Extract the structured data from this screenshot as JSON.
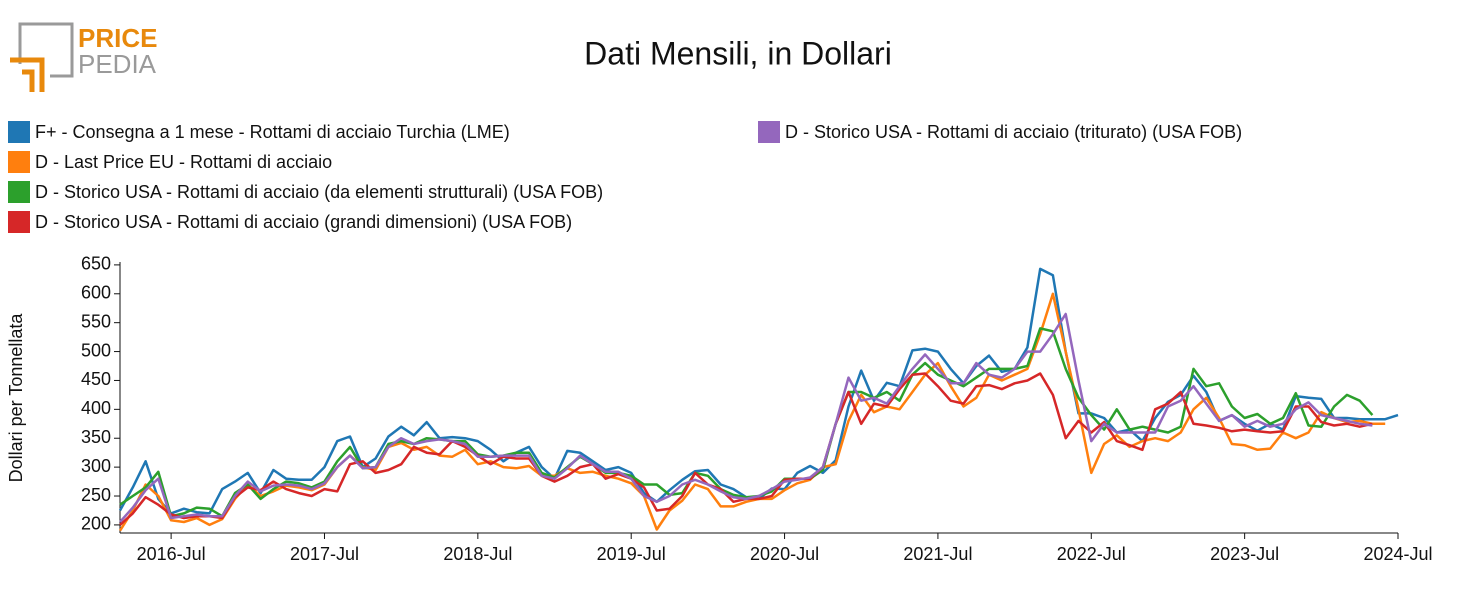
{
  "logo": {
    "line1": "PRICE",
    "line2": "PEDIA"
  },
  "chart_data": {
    "type": "line",
    "title": "Dati Mensili, in Dollari",
    "y_label": "Dollari per Tonnellata",
    "x": [
      "2016-03",
      "2016-04",
      "2016-05",
      "2016-06",
      "2016-07",
      "2016-08",
      "2016-09",
      "2016-10",
      "2016-11",
      "2016-12",
      "2017-01",
      "2017-02",
      "2017-03",
      "2017-04",
      "2017-05",
      "2017-06",
      "2017-07",
      "2017-08",
      "2017-09",
      "2017-10",
      "2017-11",
      "2017-12",
      "2018-01",
      "2018-02",
      "2018-03",
      "2018-04",
      "2018-05",
      "2018-06",
      "2018-07",
      "2018-08",
      "2018-09",
      "2018-10",
      "2018-11",
      "2018-12",
      "2019-01",
      "2019-02",
      "2019-03",
      "2019-04",
      "2019-05",
      "2019-06",
      "2019-07",
      "2019-08",
      "2019-09",
      "2019-10",
      "2019-11",
      "2019-12",
      "2020-01",
      "2020-02",
      "2020-03",
      "2020-04",
      "2020-05",
      "2020-06",
      "2020-07",
      "2020-08",
      "2020-09",
      "2020-10",
      "2020-11",
      "2020-12",
      "2021-01",
      "2021-02",
      "2021-03",
      "2021-04",
      "2021-05",
      "2021-06",
      "2021-07",
      "2021-08",
      "2021-09",
      "2021-10",
      "2021-11",
      "2021-12",
      "2022-01",
      "2022-02",
      "2022-03",
      "2022-04",
      "2022-05",
      "2022-06",
      "2022-07",
      "2022-08",
      "2022-09",
      "2022-10",
      "2022-11",
      "2022-12",
      "2023-01",
      "2023-02",
      "2023-03",
      "2023-04",
      "2023-05",
      "2023-06",
      "2023-07",
      "2023-08",
      "2023-09",
      "2023-10",
      "2023-11",
      "2023-12",
      "2024-01",
      "2024-02",
      "2024-03",
      "2024-04",
      "2024-05",
      "2024-06",
      "2024-07"
    ],
    "xlim": [
      "2016-03",
      "2024-07"
    ],
    "xticks": [
      {
        "value": "2016-07",
        "label": "2016-Jul"
      },
      {
        "value": "2017-07",
        "label": "2017-Jul"
      },
      {
        "value": "2018-07",
        "label": "2018-Jul"
      },
      {
        "value": "2019-07",
        "label": "2019-Jul"
      },
      {
        "value": "2020-07",
        "label": "2020-Jul"
      },
      {
        "value": "2021-07",
        "label": "2021-Jul"
      },
      {
        "value": "2022-07",
        "label": "2022-Jul"
      },
      {
        "value": "2023-07",
        "label": "2023-Jul"
      },
      {
        "value": "2024-07",
        "label": "2024-Jul"
      }
    ],
    "ylim": [
      186,
      655
    ],
    "yticks": [
      200,
      250,
      300,
      350,
      400,
      450,
      500,
      550,
      600,
      650
    ],
    "series": [
      {
        "name": "F+ - Consegna a 1 mese - Rottami di acciaio Turchia (LME)",
        "color": "#1f77b4",
        "values": [
          225,
          265,
          310,
          245,
          220,
          228,
          222,
          220,
          262,
          275,
          290,
          255,
          295,
          280,
          278,
          278,
          300,
          345,
          353,
          300,
          315,
          353,
          370,
          355,
          378,
          350,
          352,
          350,
          345,
          330,
          310,
          325,
          335,
          300,
          280,
          328,
          325,
          310,
          295,
          300,
          290,
          255,
          240,
          260,
          278,
          293,
          295,
          270,
          262,
          248,
          245,
          263,
          262,
          290,
          302,
          290,
          312,
          405,
          467,
          415,
          446,
          440,
          502,
          505,
          500,
          470,
          445,
          475,
          493,
          465,
          470,
          507,
          643,
          632,
          500,
          393,
          393,
          385,
          360,
          365,
          345,
          385,
          413,
          425,
          458,
          430,
          380,
          390,
          375,
          363,
          375,
          365,
          423,
          420,
          418,
          385,
          385,
          383,
          383,
          383,
          390
        ]
      },
      {
        "name": "D - Last Price EU - Rottami di acciaio",
        "color": "#ff7f0e",
        "values": [
          190,
          225,
          270,
          250,
          208,
          205,
          212,
          200,
          210,
          245,
          270,
          250,
          258,
          268,
          265,
          260,
          270,
          300,
          320,
          300,
          295,
          335,
          342,
          330,
          335,
          320,
          318,
          330,
          305,
          310,
          300,
          298,
          302,
          285,
          285,
          298,
          290,
          292,
          285,
          280,
          272,
          250,
          192,
          225,
          242,
          270,
          262,
          232,
          232,
          240,
          245,
          245,
          260,
          272,
          278,
          300,
          305,
          380,
          425,
          395,
          405,
          400,
          430,
          460,
          480,
          440,
          405,
          420,
          460,
          450,
          460,
          470,
          530,
          600,
          500,
          400,
          290,
          340,
          355,
          335,
          345,
          350,
          345,
          360,
          400,
          420,
          385,
          340,
          338,
          330,
          332,
          360,
          350,
          360,
          395,
          385,
          378,
          380,
          375,
          375,
          null
        ]
      },
      {
        "name": "D - Storico USA - Rottami di acciaio (da elementi strutturali) (USA FOB)",
        "color": "#2ca02c",
        "values": [
          235,
          250,
          265,
          292,
          215,
          220,
          230,
          228,
          215,
          255,
          270,
          245,
          262,
          275,
          272,
          265,
          275,
          310,
          335,
          298,
          300,
          340,
          345,
          340,
          350,
          348,
          345,
          345,
          322,
          318,
          320,
          325,
          325,
          290,
          282,
          300,
          318,
          305,
          290,
          290,
          285,
          270,
          270,
          252,
          255,
          290,
          285,
          262,
          252,
          248,
          250,
          258,
          280,
          280,
          280,
          295,
          375,
          430,
          430,
          420,
          430,
          415,
          460,
          480,
          460,
          450,
          440,
          455,
          470,
          470,
          470,
          475,
          540,
          535,
          470,
          420,
          390,
          365,
          400,
          365,
          370,
          365,
          360,
          370,
          470,
          440,
          445,
          405,
          385,
          392,
          375,
          385,
          428,
          372,
          370,
          405,
          425,
          415,
          390,
          null,
          null
        ]
      },
      {
        "name": "D - Storico USA - Rottami di acciaio (grandi dimensioni) (USA FOB)",
        "color": "#d62728",
        "values": [
          200,
          220,
          248,
          235,
          218,
          212,
          215,
          215,
          212,
          248,
          265,
          260,
          275,
          262,
          255,
          250,
          262,
          258,
          305,
          310,
          290,
          295,
          305,
          335,
          325,
          322,
          345,
          335,
          320,
          305,
          318,
          315,
          315,
          285,
          275,
          285,
          300,
          305,
          280,
          288,
          280,
          265,
          225,
          228,
          250,
          290,
          270,
          262,
          240,
          245,
          245,
          250,
          278,
          280,
          280,
          300,
          375,
          430,
          375,
          410,
          405,
          435,
          460,
          462,
          440,
          415,
          410,
          440,
          442,
          435,
          445,
          450,
          462,
          425,
          350,
          380,
          360,
          378,
          345,
          338,
          330,
          400,
          410,
          430,
          375,
          372,
          368,
          362,
          365,
          362,
          360,
          362,
          405,
          405,
          378,
          372,
          375,
          370,
          375,
          null,
          null
        ]
      },
      {
        "name": "D - Storico USA - Rottami di acciaio (triturato) (USA FOB)",
        "color": "#9467bd",
        "values": [
          205,
          230,
          260,
          280,
          212,
          215,
          218,
          215,
          215,
          250,
          275,
          258,
          268,
          270,
          268,
          262,
          272,
          300,
          320,
          298,
          300,
          335,
          350,
          340,
          345,
          348,
          345,
          340,
          318,
          318,
          320,
          320,
          320,
          285,
          280,
          298,
          320,
          305,
          292,
          292,
          280,
          250,
          240,
          250,
          270,
          278,
          270,
          258,
          248,
          245,
          250,
          262,
          275,
          278,
          282,
          300,
          375,
          455,
          415,
          420,
          410,
          440,
          470,
          495,
          470,
          445,
          445,
          480,
          460,
          455,
          470,
          500,
          500,
          530,
          565,
          450,
          345,
          375,
          360,
          360,
          360,
          360,
          405,
          415,
          440,
          410,
          380,
          390,
          370,
          380,
          370,
          375,
          400,
          412,
          390,
          385,
          380,
          375,
          372,
          null,
          null
        ]
      }
    ]
  }
}
